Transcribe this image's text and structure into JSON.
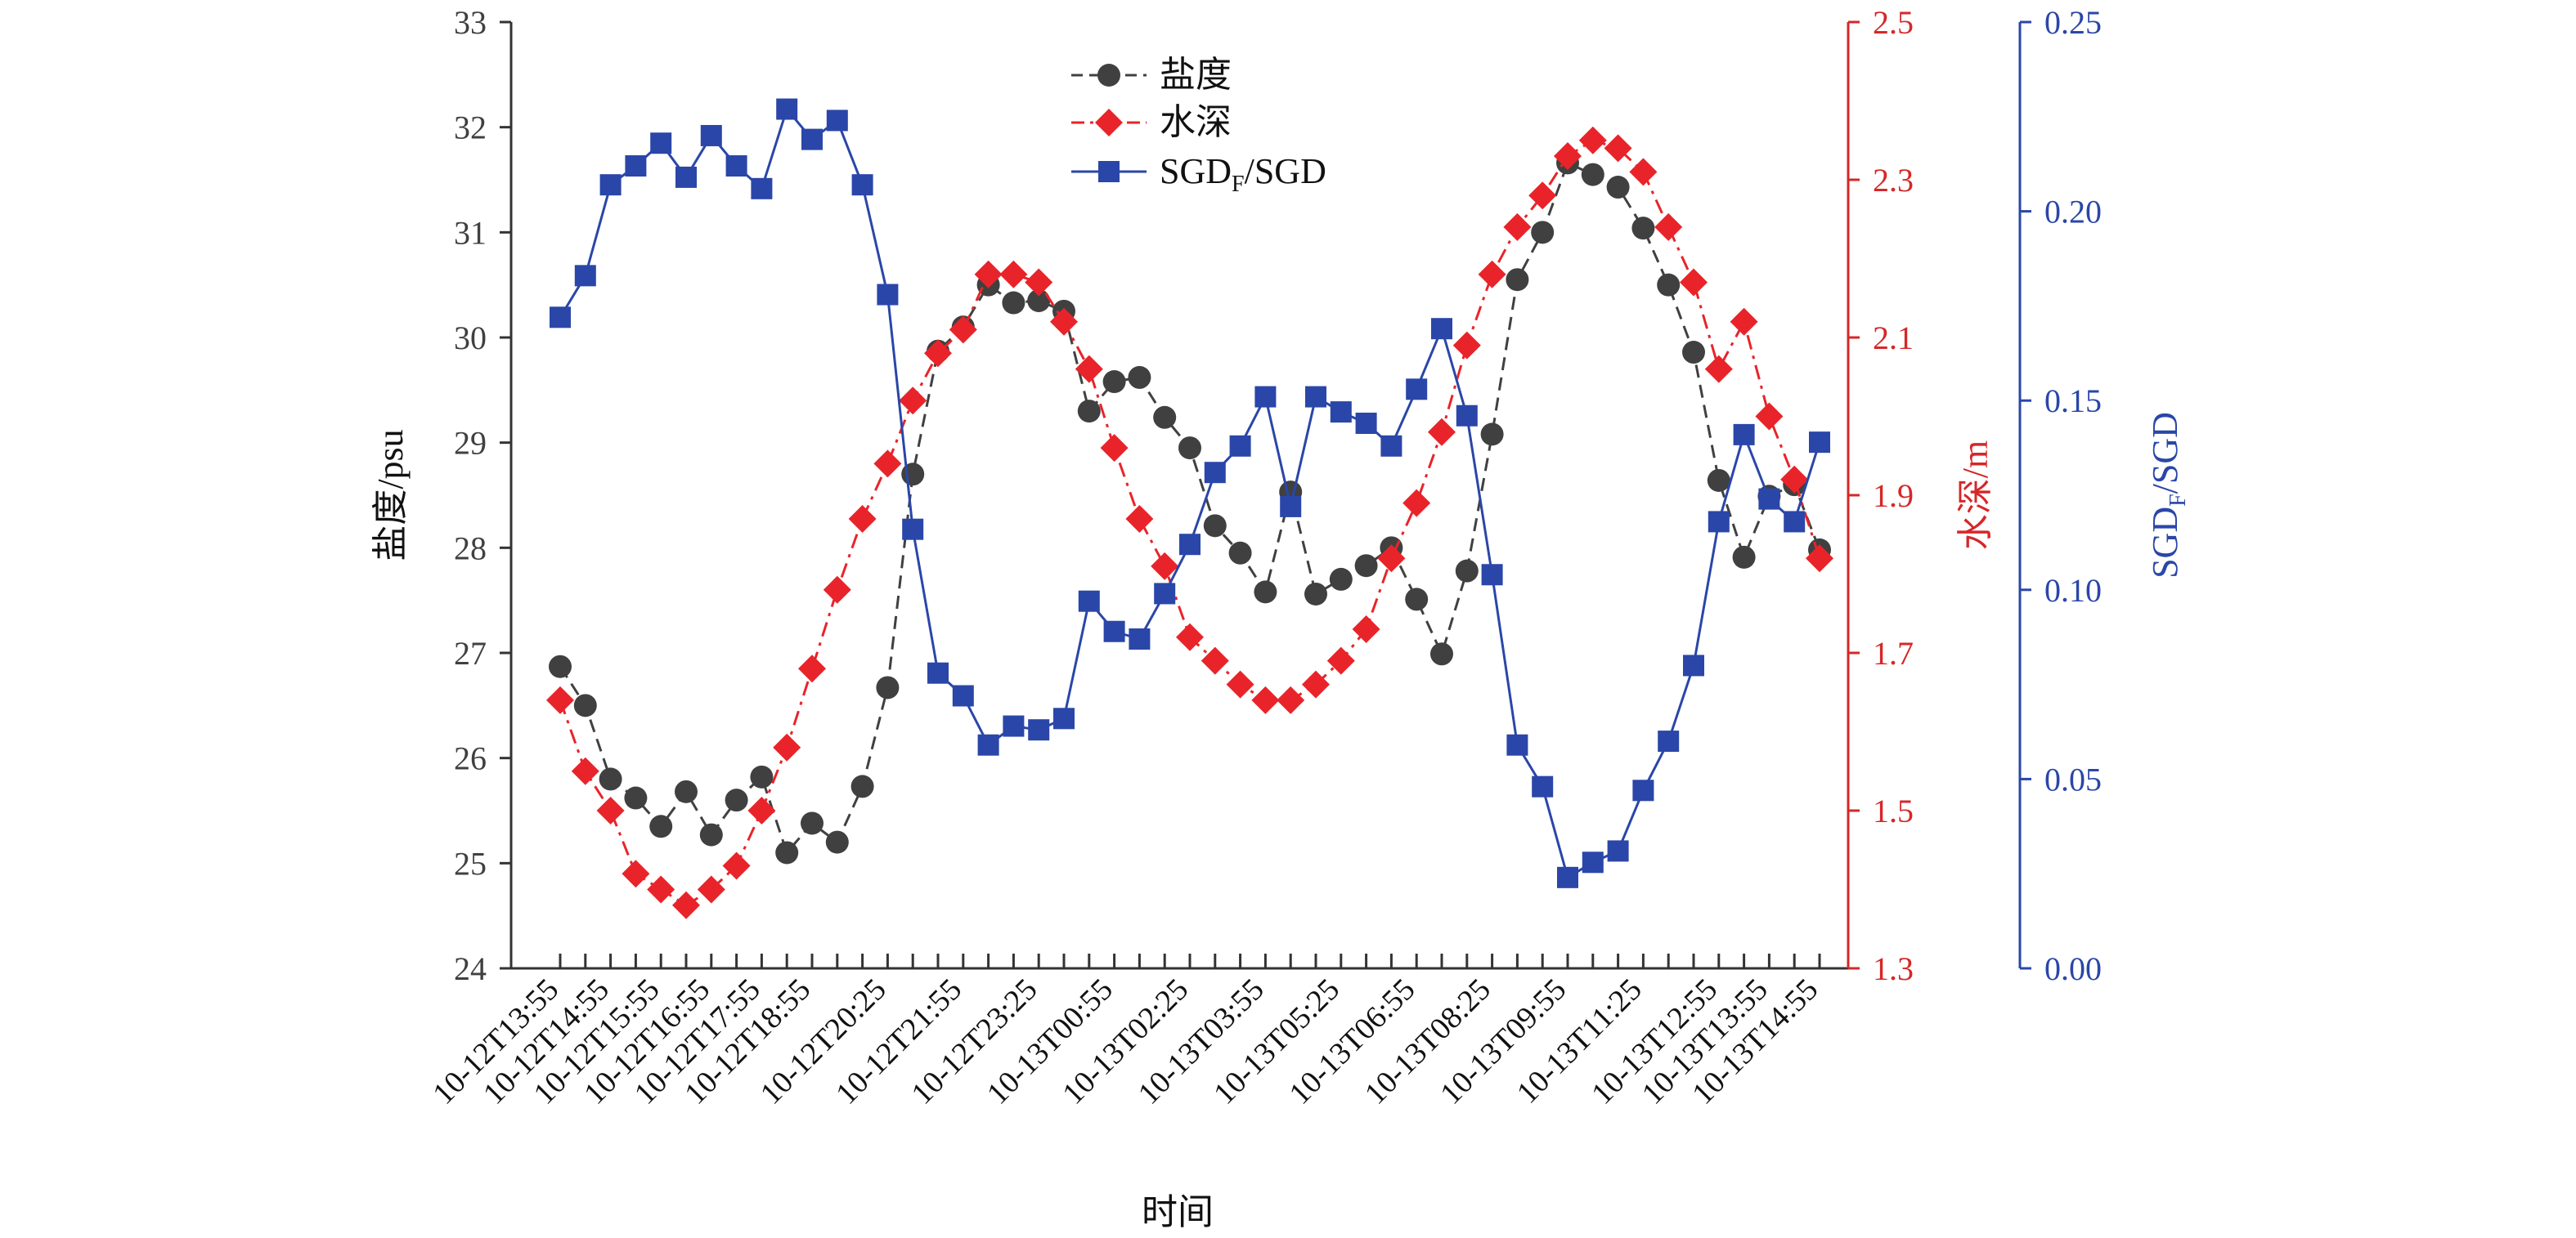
{
  "chart_data": {
    "type": "line",
    "title": "",
    "xlabel": "时间",
    "ylabel_left": "盐度/psu",
    "ylabel_right1": "水深/m",
    "ylabel_right2_parts": [
      "SGD",
      "F",
      "/SGD"
    ],
    "ylim_left": [
      24,
      33
    ],
    "ylim_right1": [
      1.3,
      2.5
    ],
    "ylim_right2": [
      0.0,
      0.25
    ],
    "yticks_left": [
      "24",
      "25",
      "26",
      "27",
      "28",
      "29",
      "30",
      "31",
      "32",
      "33"
    ],
    "yticks_right1": [
      "1.3",
      "1.5",
      "1.7",
      "1.9",
      "2.1",
      "2.3",
      "2.5"
    ],
    "yticks_right2": [
      "0.00",
      "0.05",
      "0.10",
      "0.15",
      "0.20",
      "0.25"
    ],
    "x_count": 51,
    "xtick_labels": [
      {
        "i": 0,
        "label": "10-12T13:55"
      },
      {
        "i": 2,
        "label": "10-12T14:55"
      },
      {
        "i": 4,
        "label": "10-12T15:55"
      },
      {
        "i": 6,
        "label": "10-12T16:55"
      },
      {
        "i": 8,
        "label": "10-12T17:55"
      },
      {
        "i": 10,
        "label": "10-12T18:55"
      },
      {
        "i": 13,
        "label": "10-12T20:25"
      },
      {
        "i": 16,
        "label": "10-12T21:55"
      },
      {
        "i": 19,
        "label": "10-12T23:25"
      },
      {
        "i": 22,
        "label": "10-13T00:55"
      },
      {
        "i": 25,
        "label": "10-13T02:25"
      },
      {
        "i": 28,
        "label": "10-13T03:55"
      },
      {
        "i": 31,
        "label": "10-13T05:25"
      },
      {
        "i": 34,
        "label": "10-13T06:55"
      },
      {
        "i": 37,
        "label": "10-13T08:25"
      },
      {
        "i": 40,
        "label": "10-13T09:55"
      },
      {
        "i": 43,
        "label": "10-13T11:25"
      },
      {
        "i": 46,
        "label": "10-13T12:55"
      },
      {
        "i": 48,
        "label": "10-13T13:55"
      },
      {
        "i": 50,
        "label": "10-13T14:55"
      }
    ],
    "legend_position": "top-center",
    "series": [
      {
        "name": "盐度",
        "axis": "left",
        "color": "#404040",
        "marker": "circle",
        "line": "dashed",
        "values": [
          26.87,
          26.5,
          25.8,
          25.62,
          25.35,
          25.68,
          25.27,
          25.6,
          25.82,
          25.1,
          25.38,
          25.2,
          25.73,
          26.67,
          28.7,
          29.87,
          30.1,
          30.5,
          30.33,
          30.35,
          30.25,
          29.3,
          29.58,
          29.62,
          29.24,
          28.95,
          28.21,
          27.95,
          27.58,
          28.53,
          27.56,
          27.7,
          27.83,
          28.0,
          27.51,
          26.99,
          27.78,
          29.08,
          30.55,
          31.0,
          31.66,
          31.55,
          31.43,
          31.04,
          30.5,
          29.86,
          28.64,
          27.91,
          28.49,
          28.6,
          27.98
        ]
      },
      {
        "name": "水深",
        "axis": "right1",
        "color": "#e8242a",
        "marker": "diamond",
        "line": "dash-dot",
        "values": [
          1.64,
          1.55,
          1.5,
          1.42,
          1.4,
          1.38,
          1.4,
          1.43,
          1.5,
          1.58,
          1.68,
          1.78,
          1.87,
          1.94,
          2.02,
          2.08,
          2.11,
          2.18,
          2.18,
          2.17,
          2.12,
          2.06,
          1.96,
          1.87,
          1.81,
          1.72,
          1.69,
          1.66,
          1.64,
          1.64,
          1.66,
          1.69,
          1.73,
          1.82,
          1.89,
          1.98,
          2.09,
          2.18,
          2.24,
          2.28,
          2.33,
          2.35,
          2.34,
          2.31,
          2.24,
          2.17,
          2.06,
          2.12,
          2.0,
          1.92,
          1.82
        ]
      },
      {
        "name": "SGDF/SGD",
        "name_parts": [
          "SGD",
          "F",
          "/SGD"
        ],
        "axis": "right2",
        "color": "#2a46a8",
        "marker": "square",
        "line": "solid",
        "values": [
          0.172,
          0.183,
          0.207,
          0.212,
          0.218,
          0.209,
          0.22,
          0.212,
          0.206,
          0.227,
          0.219,
          0.224,
          0.207,
          0.178,
          0.116,
          0.078,
          0.072,
          0.059,
          0.064,
          0.063,
          0.066,
          0.097,
          0.089,
          0.087,
          0.099,
          0.112,
          0.131,
          0.138,
          0.151,
          0.122,
          0.151,
          0.147,
          0.144,
          0.138,
          0.153,
          0.169,
          0.146,
          0.104,
          0.059,
          0.048,
          0.024,
          0.028,
          0.031,
          0.047,
          0.06,
          0.08,
          0.118,
          0.141,
          0.124,
          0.118,
          0.139
        ]
      }
    ]
  }
}
